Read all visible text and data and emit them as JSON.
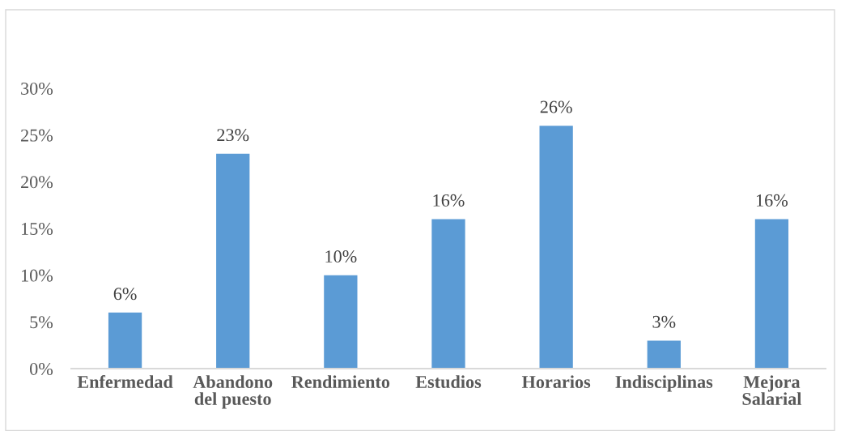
{
  "chart_data": {
    "type": "bar",
    "categories": [
      "Enfermedad",
      "Abandono\ndel puesto",
      "Rendimiento",
      "Estudios",
      "Horarios",
      "Indisciplinas",
      "Mejora\nSalarial"
    ],
    "values": [
      6,
      23,
      10,
      16,
      26,
      3,
      16
    ],
    "value_labels": [
      "6%",
      "23%",
      "10%",
      "16%",
      "26%",
      "3%",
      "16%"
    ],
    "color": "#5b9bd5",
    "ylim": [
      0,
      30
    ],
    "yticks": [
      {
        "value": 0,
        "label": "0%"
      },
      {
        "value": 5,
        "label": "5%"
      },
      {
        "value": 10,
        "label": "10%"
      },
      {
        "value": 15,
        "label": "15%"
      },
      {
        "value": 20,
        "label": "20%"
      },
      {
        "value": 25,
        "label": "25%"
      },
      {
        "value": 30,
        "label": "30%"
      }
    ]
  }
}
